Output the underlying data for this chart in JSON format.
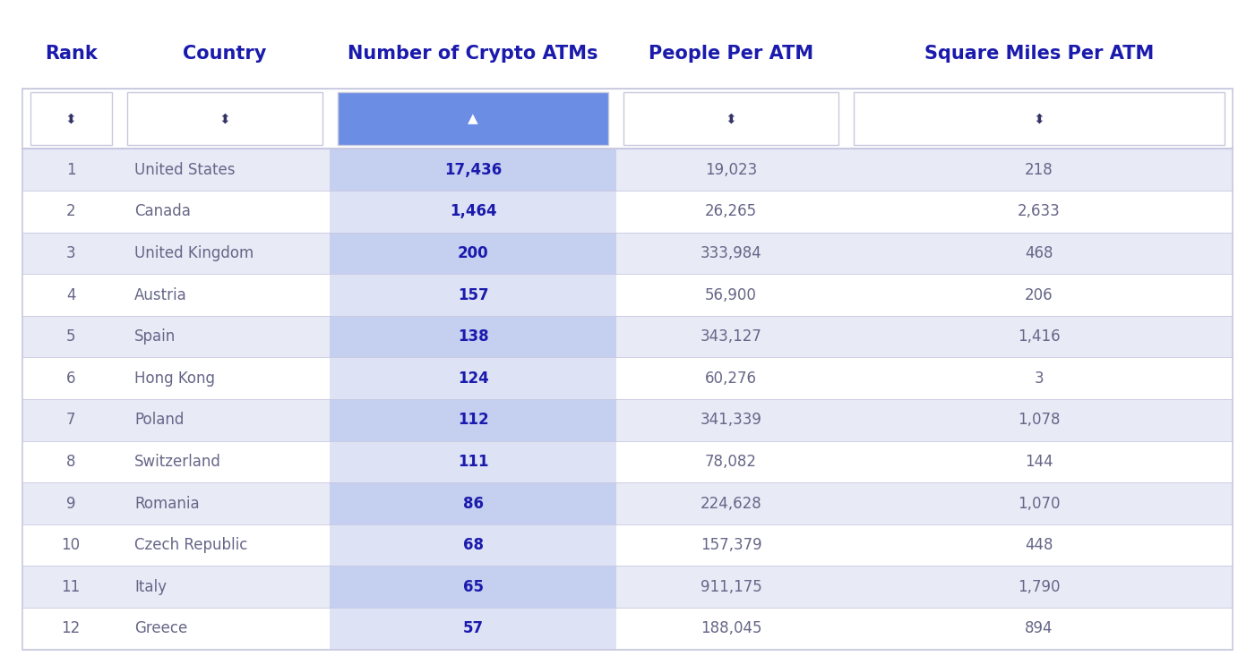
{
  "title_row": [
    "Rank",
    "Country",
    "Number of Crypto ATMs",
    "People Per ATM",
    "Square Miles Per ATM"
  ],
  "rows": [
    [
      1,
      "United States",
      "17,436",
      "19,023",
      "218"
    ],
    [
      2,
      "Canada",
      "1,464",
      "26,265",
      "2,633"
    ],
    [
      3,
      "United Kingdom",
      "200",
      "333,984",
      "468"
    ],
    [
      4,
      "Austria",
      "157",
      "56,900",
      "206"
    ],
    [
      5,
      "Spain",
      "138",
      "343,127",
      "1,416"
    ],
    [
      6,
      "Hong Kong",
      "124",
      "60,276",
      "3"
    ],
    [
      7,
      "Poland",
      "112",
      "341,339",
      "1,078"
    ],
    [
      8,
      "Switzerland",
      "111",
      "78,082",
      "144"
    ],
    [
      9,
      "Romania",
      "86",
      "224,628",
      "1,070"
    ],
    [
      10,
      "Czech Republic",
      "68",
      "157,379",
      "448"
    ],
    [
      11,
      "Italy",
      "65",
      "911,175",
      "1,790"
    ],
    [
      12,
      "Greece",
      "57",
      "188,045",
      "894"
    ]
  ],
  "header_text_color": "#1a1aad",
  "active_col_bg": "#6b8de3",
  "row_bg_odd": "#e8eaf6",
  "row_bg_even": "#ffffff",
  "atm_col_bg_odd": "#c5cff0",
  "atm_col_bg_even": "#dde3f5",
  "rank_text_color": "#666688",
  "country_text_color": "#666688",
  "atm_text_color": "#1a1aad",
  "other_text_color": "#666688",
  "border_color": "#c8c8e0",
  "fig_bg": "#ffffff",
  "title_fontsize": 15,
  "cell_fontsize": 12,
  "filter_fontsize": 11
}
